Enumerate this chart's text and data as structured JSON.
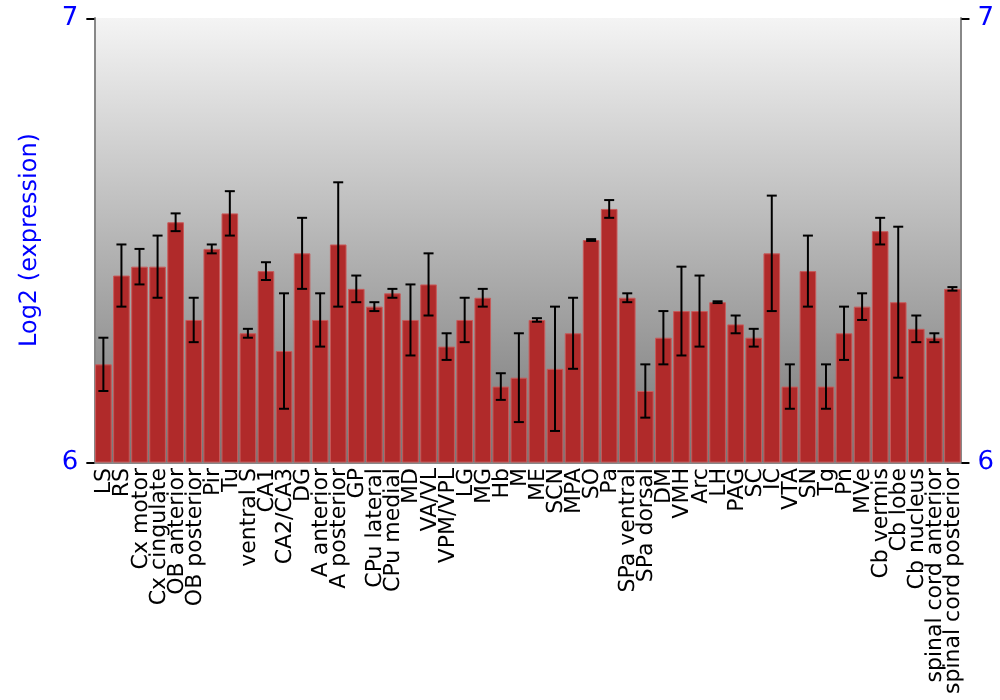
{
  "chart_data": {
    "type": "bar",
    "ylabel": "Log2 (expression)",
    "categories": [
      "LS",
      "RS",
      "Cx motor",
      "Cx cingulate",
      "OB anterior",
      "OB posterior",
      "Pir",
      "Tu",
      "ventral S",
      "CA1",
      "CA2/CA3",
      "DG",
      "A anterior",
      "A posterior",
      "GP",
      "CPu lateral",
      "CPu medial",
      "MD",
      "VA/VL",
      "VPM/VPL",
      "LG",
      "MG",
      "Hb",
      "M",
      "ME",
      "SCN",
      "MPA",
      "SO",
      "Pa",
      "SPa ventral",
      "SPa dorsal",
      "DM",
      "VMH",
      "Arc",
      "LH",
      "PAG",
      "SC",
      "IC",
      "VTA",
      "SN",
      "Tg",
      "Pn",
      "MVe",
      "Cb vermis",
      "Cb lobe",
      "Cb nucleus",
      "spinal cord anterior",
      "spinal cord posterior"
    ],
    "series": [
      {
        "color": "#b02a2a",
        "values": [
          6.22,
          6.42,
          6.44,
          6.44,
          6.54,
          6.32,
          6.48,
          6.56,
          6.29,
          6.43,
          6.25,
          6.47,
          6.32,
          6.49,
          6.39,
          6.35,
          6.38,
          6.32,
          6.4,
          6.26,
          6.32,
          6.37,
          6.17,
          6.19,
          6.32,
          6.21,
          6.29,
          6.5,
          6.57,
          6.37,
          6.16,
          6.28,
          6.34,
          6.34,
          6.36,
          6.31,
          6.28,
          6.47,
          6.17,
          6.43,
          6.17,
          6.29,
          6.35,
          6.52,
          6.36,
          6.3,
          6.28,
          6.39
        ],
        "errors": [
          0.06,
          0.07,
          0.04,
          0.07,
          0.02,
          0.05,
          0.01,
          0.05,
          0.01,
          0.02,
          0.13,
          0.08,
          0.06,
          0.14,
          0.03,
          0.01,
          0.01,
          0.08,
          0.07,
          0.03,
          0.05,
          0.02,
          0.03,
          0.1,
          0.004,
          0.14,
          0.08,
          0.002,
          0.02,
          0.01,
          0.06,
          0.06,
          0.1,
          0.08,
          0.002,
          0.02,
          0.02,
          0.13,
          0.05,
          0.08,
          0.05,
          0.06,
          0.03,
          0.03,
          0.17,
          0.03,
          0.01,
          0.004
        ]
      }
    ],
    "ylim": [
      6,
      7
    ],
    "yticks": [
      6,
      7
    ],
    "y2lim": [
      6,
      7
    ],
    "y2ticks": [
      6,
      7
    ]
  }
}
